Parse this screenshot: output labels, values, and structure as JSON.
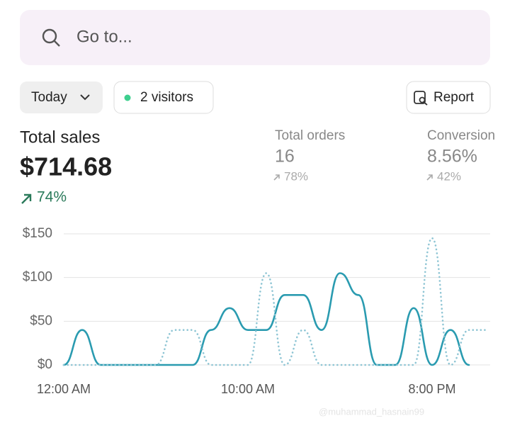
{
  "search": {
    "placeholder": "Go to..."
  },
  "filters": {
    "date": "Today",
    "visitors": "2 visitors",
    "report": "Report"
  },
  "metrics": [
    {
      "label": "Total sales",
      "value": "$714.68",
      "change": "74%"
    },
    {
      "label": "Total orders",
      "value": "16",
      "change": "78%"
    },
    {
      "label": "Conversion rate",
      "value": "8.56%",
      "change": "42%"
    }
  ],
  "chart_data": {
    "type": "line",
    "categories": [
      "12:00 AM",
      null,
      null,
      null,
      null,
      null,
      null,
      null,
      null,
      null,
      "10:00 AM",
      null,
      null,
      null,
      null,
      null,
      null,
      null,
      null,
      null,
      "8:00 PM",
      null,
      null,
      null
    ],
    "series": [
      {
        "color": "#2a9bb0",
        "style": "solid",
        "values": [
          0,
          40,
          0,
          0,
          0,
          0,
          0,
          0,
          40,
          65,
          40,
          40,
          80,
          80,
          40,
          105,
          80,
          0,
          0,
          65,
          0,
          40,
          0,
          null
        ]
      },
      {
        "color": "#8ec5d4",
        "style": "dotted",
        "values": [
          0,
          0,
          0,
          0,
          0,
          0,
          40,
          40,
          0,
          0,
          0,
          105,
          0,
          40,
          0,
          0,
          0,
          0,
          0,
          0,
          145,
          0,
          40,
          40
        ]
      }
    ],
    "ylim": [
      0,
      150
    ],
    "yticks": [
      {
        "value": 0,
        "label": "$0"
      },
      {
        "value": 50,
        "label": "$50"
      },
      {
        "value": 100,
        "label": "$100"
      },
      {
        "value": 150,
        "label": "$150"
      }
    ],
    "grid": true
  },
  "watermark": "@muhammad_hasnain99"
}
